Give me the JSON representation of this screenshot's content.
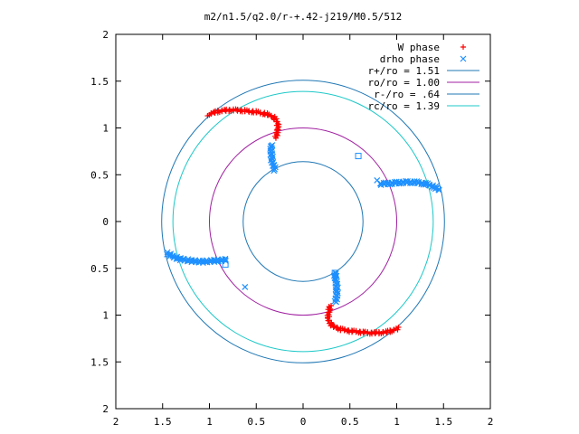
{
  "chart_data": {
    "type": "scatter",
    "title": "m2/n1.5/q2.0/r-+.42-j219/M0.5/512",
    "xlim": [
      -2,
      2
    ],
    "ylim": [
      -2,
      2
    ],
    "x_ticks": [
      -2,
      -1.5,
      -1,
      -0.5,
      0,
      0.5,
      1,
      1.5,
      2
    ],
    "x_tick_labels": [
      "2",
      "1.5",
      "1",
      "0.5",
      "0",
      "0.5",
      "1",
      "1.5",
      "2"
    ],
    "y_ticks": [
      2,
      1.5,
      1,
      0.5,
      0,
      -0.5,
      -1,
      -1.5,
      -2
    ],
    "y_tick_labels": [
      "2",
      "1.5",
      "1",
      "0.5",
      "0",
      "0.5",
      "1",
      "1.5",
      "2"
    ],
    "grid": false,
    "legend_position": "top-right",
    "legend": [
      {
        "label": "W phase",
        "kind": "marker",
        "marker": "+",
        "color": "#ff0000"
      },
      {
        "label": "drho phase",
        "kind": "marker",
        "marker": "x",
        "color": "#1e90ff"
      },
      {
        "label": "r+/ro = 1.51",
        "kind": "line",
        "color": "#1f77b4"
      },
      {
        "label": "ro/ro = 1.00",
        "kind": "line",
        "color": "#a020a0"
      },
      {
        "label": "r-/ro = .64",
        "kind": "line",
        "color": "#1f77b4"
      },
      {
        "label": "rc/ro = 1.39",
        "kind": "line",
        "color": "#1ec8c8"
      }
    ],
    "circles": [
      {
        "name": "r+/ro",
        "radius": 1.51,
        "color": "#1f77b4"
      },
      {
        "name": "ro/ro",
        "radius": 1.0,
        "color": "#a020a0"
      },
      {
        "name": "r-/ro",
        "radius": 0.64,
        "color": "#1f77b4"
      },
      {
        "name": "rc/ro",
        "radius": 1.39,
        "color": "#1ec8c8"
      }
    ],
    "series": [
      {
        "label": "W phase",
        "color": "#ff0000",
        "marker": "+",
        "arms": [
          [
            [
              -1.0,
              1.15
            ],
            [
              -0.9,
              1.18
            ],
            [
              -0.8,
              1.19
            ],
            [
              -0.7,
              1.19
            ],
            [
              -0.6,
              1.18
            ],
            [
              -0.5,
              1.17
            ],
            [
              -0.4,
              1.15
            ],
            [
              -0.32,
              1.12
            ],
            [
              -0.27,
              1.06
            ],
            [
              -0.27,
              0.98
            ],
            [
              -0.29,
              0.9
            ]
          ],
          [
            [
              1.0,
              -1.15
            ],
            [
              0.9,
              -1.18
            ],
            [
              0.8,
              -1.19
            ],
            [
              0.7,
              -1.19
            ],
            [
              0.6,
              -1.18
            ],
            [
              0.5,
              -1.17
            ],
            [
              0.4,
              -1.15
            ],
            [
              0.32,
              -1.12
            ],
            [
              0.27,
              -1.06
            ],
            [
              0.27,
              -0.98
            ],
            [
              0.29,
              -0.9
            ]
          ]
        ],
        "isolated": [
          [
            1.02,
            -1.13
          ],
          [
            -1.02,
            1.13
          ]
        ]
      },
      {
        "label": "drho phase",
        "color": "#1e90ff",
        "marker": "x",
        "arms": [
          [
            [
              -0.34,
              0.82
            ],
            [
              -0.34,
              0.73
            ],
            [
              -0.33,
              0.64
            ],
            [
              -0.31,
              0.58
            ],
            [
              -0.3,
              0.55
            ]
          ],
          [
            [
              0.34,
              -0.55
            ],
            [
              0.35,
              -0.62
            ],
            [
              0.36,
              -0.7
            ],
            [
              0.36,
              -0.78
            ],
            [
              0.35,
              -0.86
            ]
          ],
          [
            [
              0.82,
              0.4
            ],
            [
              0.95,
              0.41
            ],
            [
              1.08,
              0.42
            ],
            [
              1.2,
              0.42
            ],
            [
              1.32,
              0.4
            ],
            [
              1.4,
              0.37
            ],
            [
              1.45,
              0.34
            ]
          ],
          [
            [
              -1.45,
              -0.34
            ],
            [
              -1.4,
              -0.37
            ],
            [
              -1.32,
              -0.4
            ],
            [
              -1.2,
              -0.42
            ],
            [
              -1.08,
              -0.43
            ],
            [
              -0.95,
              -0.42
            ],
            [
              -0.82,
              -0.41
            ]
          ]
        ],
        "isolated": [
          [
            0.79,
            0.44
          ],
          [
            -0.62,
            -0.7
          ]
        ],
        "squares": [
          [
            0.59,
            0.7
          ],
          [
            -0.83,
            -0.46
          ],
          [
            0.34,
            -0.55
          ]
        ]
      }
    ]
  }
}
